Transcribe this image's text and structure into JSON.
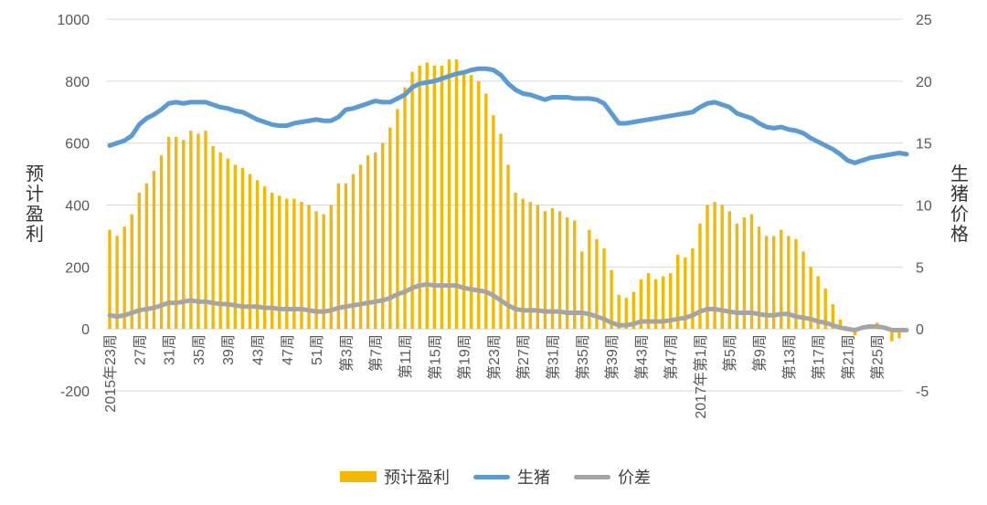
{
  "colors": {
    "bars": "#F5B800",
    "hog": "#5B9BD5",
    "diff": "#A5A5A5",
    "grid": "#D9D9D9",
    "text": "#595959"
  },
  "chart_data": {
    "type": "bar+line",
    "title": "",
    "ylabel_left": "预计盈利",
    "ylabel_right": "生猪价格",
    "ylim_left": [
      -200,
      1000
    ],
    "yticks_left": [
      -200,
      0,
      200,
      400,
      600,
      800,
      1000
    ],
    "ylim_right": [
      -5,
      25
    ],
    "yticks_right": [
      -5,
      0,
      5,
      10,
      15,
      20,
      25
    ],
    "grid": "horizontal",
    "legend": "bottom",
    "x_tick_labels": [
      "2015年23周",
      "27周",
      "31周",
      "35周",
      "39周",
      "43周",
      "47周",
      "51周",
      "第3周",
      "第7周",
      "第11周",
      "第15周",
      "第19周",
      "第23周",
      "第27周",
      "第31周",
      "第35周",
      "第39周",
      "第43周",
      "第47周",
      "2017年第1周",
      "第5周",
      "第9周",
      "第13周",
      "第17周",
      "第21周",
      "第25周"
    ],
    "series": [
      {
        "name": "预计盈利",
        "type": "bar",
        "axis": "left",
        "values": [
          320,
          300,
          330,
          370,
          440,
          470,
          510,
          560,
          620,
          620,
          610,
          640,
          630,
          640,
          590,
          570,
          550,
          530,
          520,
          500,
          480,
          460,
          440,
          430,
          420,
          420,
          410,
          400,
          380,
          370,
          400,
          470,
          470,
          500,
          530,
          560,
          570,
          600,
          650,
          710,
          780,
          830,
          850,
          860,
          850,
          850,
          870,
          870,
          830,
          820,
          800,
          760,
          690,
          630,
          530,
          440,
          420,
          410,
          400,
          380,
          390,
          380,
          360,
          350,
          250,
          320,
          290,
          260,
          190,
          110,
          100,
          120,
          160,
          180,
          160,
          170,
          180,
          240,
          230,
          260,
          340,
          400,
          410,
          400,
          380,
          340,
          360,
          370,
          330,
          300,
          300,
          320,
          300,
          290,
          250,
          200,
          170,
          130,
          80,
          30,
          0,
          -20,
          0,
          0,
          20,
          0,
          -40,
          -30
        ]
      },
      {
        "name": "生猪",
        "type": "line",
        "axis": "right",
        "values": [
          14.8,
          15.0,
          15.2,
          15.6,
          16.5,
          17.0,
          17.3,
          17.7,
          18.2,
          18.3,
          18.2,
          18.3,
          18.3,
          18.3,
          18.1,
          17.9,
          17.8,
          17.6,
          17.5,
          17.2,
          16.9,
          16.7,
          16.5,
          16.4,
          16.4,
          16.6,
          16.7,
          16.8,
          16.9,
          16.8,
          16.8,
          17.1,
          17.7,
          17.8,
          18.0,
          18.2,
          18.4,
          18.3,
          18.3,
          18.6,
          18.9,
          19.5,
          19.8,
          19.9,
          20.0,
          20.2,
          20.4,
          20.6,
          20.7,
          20.9,
          21.0,
          21.0,
          20.9,
          20.5,
          19.8,
          19.3,
          19.0,
          18.9,
          18.7,
          18.5,
          18.7,
          18.7,
          18.7,
          18.6,
          18.6,
          18.6,
          18.5,
          18.2,
          17.4,
          16.6,
          16.6,
          16.7,
          16.8,
          16.9,
          17.0,
          17.1,
          17.2,
          17.3,
          17.4,
          17.5,
          17.9,
          18.2,
          18.3,
          18.1,
          17.9,
          17.4,
          17.2,
          17.0,
          16.6,
          16.3,
          16.2,
          16.3,
          16.1,
          16.0,
          15.8,
          15.4,
          15.1,
          14.8,
          14.5,
          14.1,
          13.6,
          13.4,
          13.6,
          13.8,
          13.9,
          14.0,
          14.1,
          14.2,
          14.1
        ]
      },
      {
        "name": "价差",
        "type": "line",
        "axis": "right",
        "values": [
          1.1,
          1.0,
          1.1,
          1.3,
          1.5,
          1.6,
          1.7,
          1.9,
          2.1,
          2.1,
          2.2,
          2.3,
          2.2,
          2.2,
          2.1,
          2.0,
          2.0,
          1.9,
          1.8,
          1.8,
          1.8,
          1.7,
          1.7,
          1.6,
          1.6,
          1.6,
          1.6,
          1.5,
          1.4,
          1.4,
          1.5,
          1.7,
          1.8,
          1.9,
          2.0,
          2.1,
          2.2,
          2.3,
          2.5,
          2.8,
          3.0,
          3.3,
          3.5,
          3.6,
          3.5,
          3.5,
          3.5,
          3.5,
          3.3,
          3.2,
          3.1,
          3.0,
          2.7,
          2.3,
          1.9,
          1.6,
          1.5,
          1.5,
          1.5,
          1.4,
          1.4,
          1.4,
          1.3,
          1.3,
          1.3,
          1.2,
          1.0,
          0.8,
          0.5,
          0.3,
          0.3,
          0.4,
          0.6,
          0.6,
          0.6,
          0.6,
          0.7,
          0.8,
          0.9,
          1.1,
          1.4,
          1.6,
          1.6,
          1.5,
          1.4,
          1.3,
          1.3,
          1.3,
          1.2,
          1.1,
          1.1,
          1.2,
          1.2,
          1.0,
          0.9,
          0.8,
          0.6,
          0.5,
          0.3,
          0.1,
          0.0,
          -0.1,
          0.1,
          0.2,
          0.2,
          0.1,
          -0.1,
          -0.1,
          -0.1
        ]
      }
    ]
  }
}
